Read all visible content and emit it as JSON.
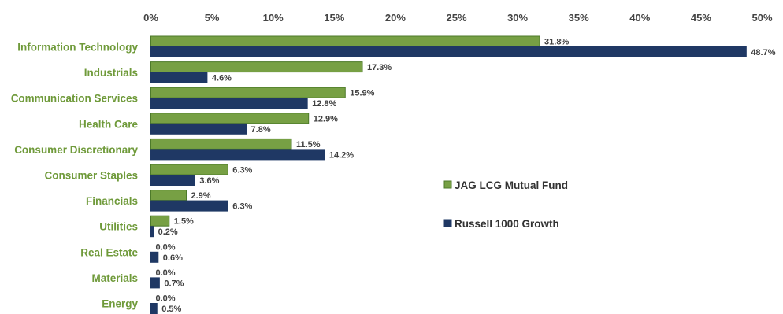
{
  "chart_data": {
    "type": "bar",
    "orientation": "horizontal",
    "categories": [
      "Information Technology",
      "Industrials",
      "Communication Services",
      "Health Care",
      "Consumer Discretionary",
      "Consumer Staples",
      "Financials",
      "Utilities",
      "Real Estate",
      "Materials",
      "Energy"
    ],
    "series": [
      {
        "name": "JAG LCG Mutual Fund",
        "color": "#77a044",
        "border": "#4d7a2a",
        "values": [
          31.8,
          17.3,
          15.9,
          12.9,
          11.5,
          6.3,
          2.9,
          1.5,
          0.0,
          0.0,
          0.0
        ],
        "labels": [
          "31.8%",
          "17.3%",
          "15.9%",
          "12.9%",
          "11.5%",
          "6.3%",
          "2.9%",
          "1.5%",
          "0.0%",
          "0.0%",
          "0.0%"
        ]
      },
      {
        "name": "Russell 1000 Growth",
        "color": "#1f3864",
        "border": "#1f3864",
        "values": [
          48.7,
          4.6,
          12.8,
          7.8,
          14.2,
          3.6,
          6.3,
          0.2,
          0.6,
          0.7,
          0.5
        ],
        "labels": [
          "48.7%",
          "4.6%",
          "12.8%",
          "7.8%",
          "14.2%",
          "3.6%",
          "6.3%",
          "0.2%",
          "0.6%",
          "0.7%",
          "0.5%"
        ]
      }
    ],
    "x_ticks": [
      0,
      5,
      10,
      15,
      20,
      25,
      30,
      35,
      40,
      45,
      50
    ],
    "x_tick_labels": [
      "0%",
      "5%",
      "10%",
      "15%",
      "20%",
      "25%",
      "30%",
      "35%",
      "40%",
      "45%",
      "50%"
    ],
    "xlim": [
      0,
      50
    ],
    "x_axis_position": "top",
    "category_label_color": "#6f9a3a",
    "grid": false,
    "legend_position": "right-middle",
    "title": "",
    "xlabel": "",
    "ylabel": ""
  }
}
